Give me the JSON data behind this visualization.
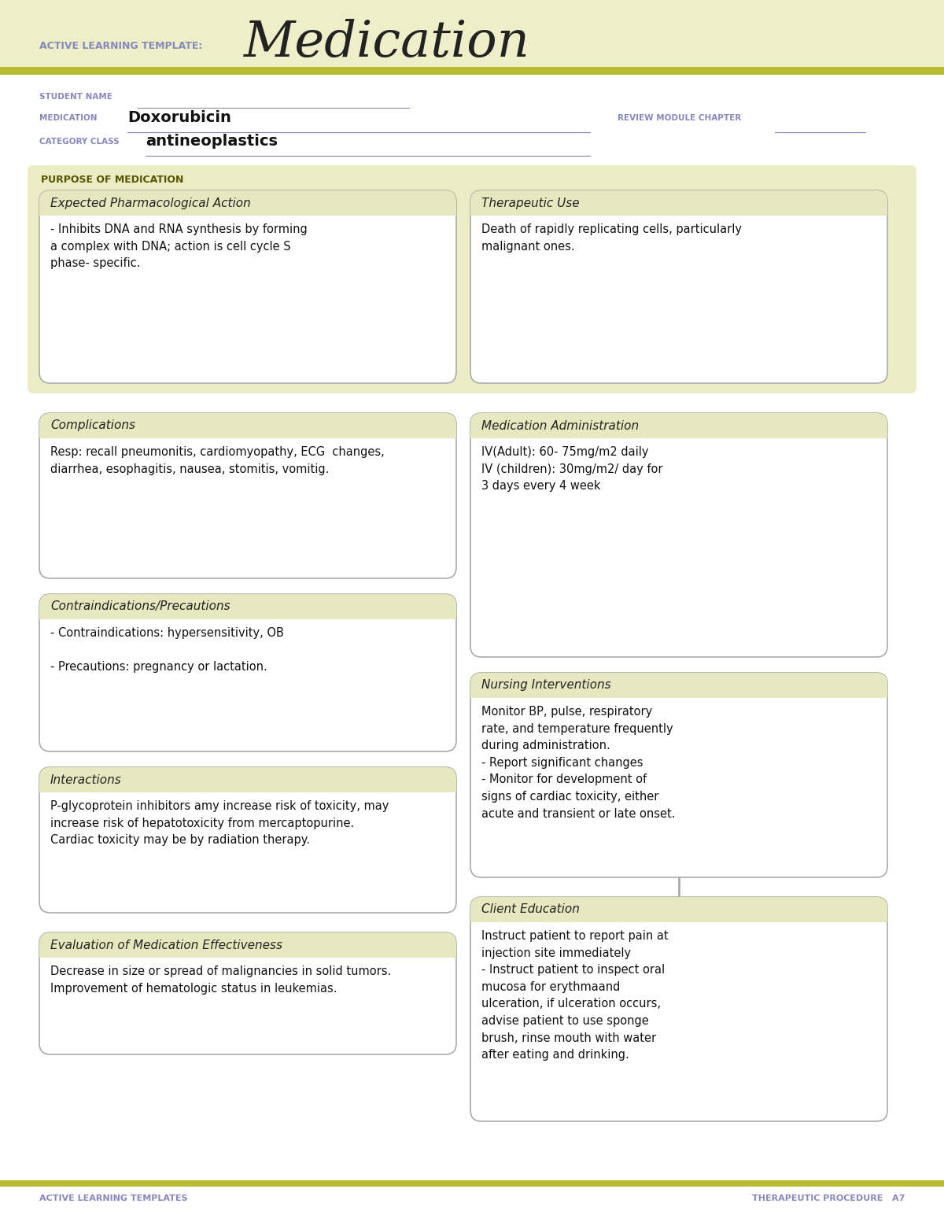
{
  "page_bg": "#ffffff",
  "header_bg": "#eeeec8",
  "olive_line": "#b8bc30",
  "box_header_bg": "#e8e8c0",
  "box_bg": "#ffffff",
  "border_color": "#aaaaaa",
  "label_color": "#8888bb",
  "title_color": "#222222",
  "body_color": "#111111",
  "purpose_bg": "#ededc5",
  "title_label": "ACTIVE LEARNING TEMPLATE:",
  "title_text": "Medication",
  "student_label": "STUDENT NAME",
  "medication_label": "MEDICATION",
  "medication_value": "Doxorubicin",
  "category_label": "CATEGORY CLASS",
  "category_value": "antineoplastics",
  "review_label": "REVIEW MODULE CHAPTER",
  "purpose_label": "PURPOSE OF MEDICATION",
  "box1_title": "Expected Pharmacological Action",
  "box1_body": "- Inhibits DNA and RNA synthesis by forming\na complex with DNA; action is cell cycle S\nphase- specific.",
  "box2_title": "Therapeutic Use",
  "box2_body": "Death of rapidly replicating cells, particularly\nmalignant ones.",
  "box3_title": "Complications",
  "box3_body": "Resp: recall pneumonitis, cardiomyopathy, ECG  changes,\ndiarrhea, esophagitis, nausea, stomitis, vomitig.",
  "box4_title": "Medication Administration",
  "box4_body": "IV(Adult): 60- 75mg/m2 daily\nIV (children): 30mg/m2/ day for\n3 days every 4 week",
  "box5_title": "Contraindications/Precautions",
  "box5_body": "- Contraindications: hypersensitivity, OB\n\n- Precautions: pregnancy or lactation.",
  "box6_title": "Nursing Interventions",
  "box6_body": "Monitor BP, pulse, respiratory\nrate, and temperature frequently\nduring administration.\n- Report significant changes\n- Monitor for development of\nsigns of cardiac toxicity, either\nacute and transient or late onset.",
  "box7_title": "Interactions",
  "box7_body": "P-glycoprotein inhibitors amy increase risk of toxicity, may\nincrease risk of hepatotoxicity from mercaptopurine.\nCardiac toxicity may be by radiation therapy.",
  "box8_title": "Client Education",
  "box8_body": "Instruct patient to report pain at\ninjection site immediately\n- Instruct patient to inspect oral\nmucosa for erythmaand\nulceration, if ulceration occurs,\nadvise patient to use sponge\nbrush, rinse mouth with water\nafter eating and drinking.",
  "box9_title": "Evaluation of Medication Effectiveness",
  "box9_body": "Decrease in size or spread of malignancies in solid tumors.\nImprovement of hematologic status in leukemias.",
  "footer_left": "ACTIVE LEARNING TEMPLATES",
  "footer_right": "THERAPEUTIC PROCEDURE   A7"
}
